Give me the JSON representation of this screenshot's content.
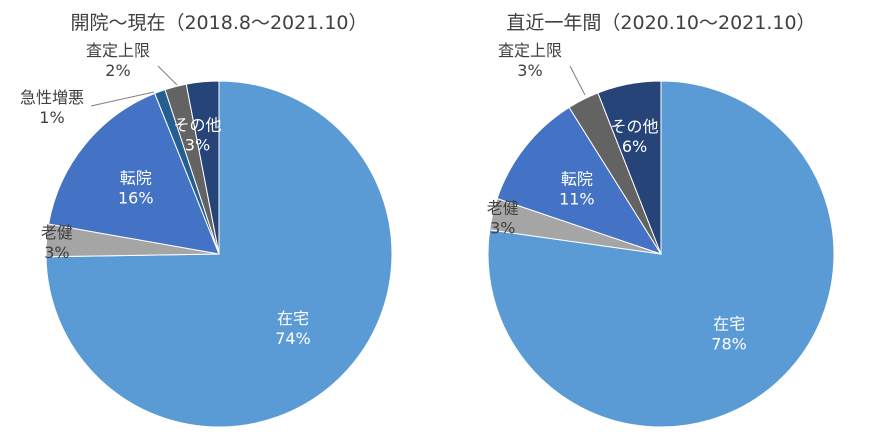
{
  "chart_data": [
    {
      "type": "pie",
      "title": "開院～現在（2018.8～2021.10）",
      "slices": [
        {
          "label": "在宅",
          "value": 74,
          "value_label": "74%",
          "color": "#5b9bd5"
        },
        {
          "label": "老健",
          "value": 3,
          "value_label": "3%",
          "color": "#a5a5a5"
        },
        {
          "label": "転院",
          "value": 16,
          "value_label": "16%",
          "color": "#4472c4"
        },
        {
          "label": "急性増悪",
          "value": 1,
          "value_label": "1%",
          "color": "#255e91"
        },
        {
          "label": "査定上限",
          "value": 2,
          "value_label": "2%",
          "color": "#636363"
        },
        {
          "label": "その他",
          "value": 3,
          "value_label": "3%",
          "color": "#264478"
        }
      ]
    },
    {
      "type": "pie",
      "title": "直近一年間（2020.10～2021.10）",
      "slices": [
        {
          "label": "在宅",
          "value": 78,
          "value_label": "78%",
          "color": "#5b9bd5"
        },
        {
          "label": "老健",
          "value": 3,
          "value_label": "3%",
          "color": "#a5a5a5"
        },
        {
          "label": "転院",
          "value": 11,
          "value_label": "11%",
          "color": "#4472c4"
        },
        {
          "label": "査定上限",
          "value": 3,
          "value_label": "3%",
          "color": "#636363"
        },
        {
          "label": "その他",
          "value": 6,
          "value_label": "6%",
          "color": "#264478"
        }
      ]
    }
  ]
}
